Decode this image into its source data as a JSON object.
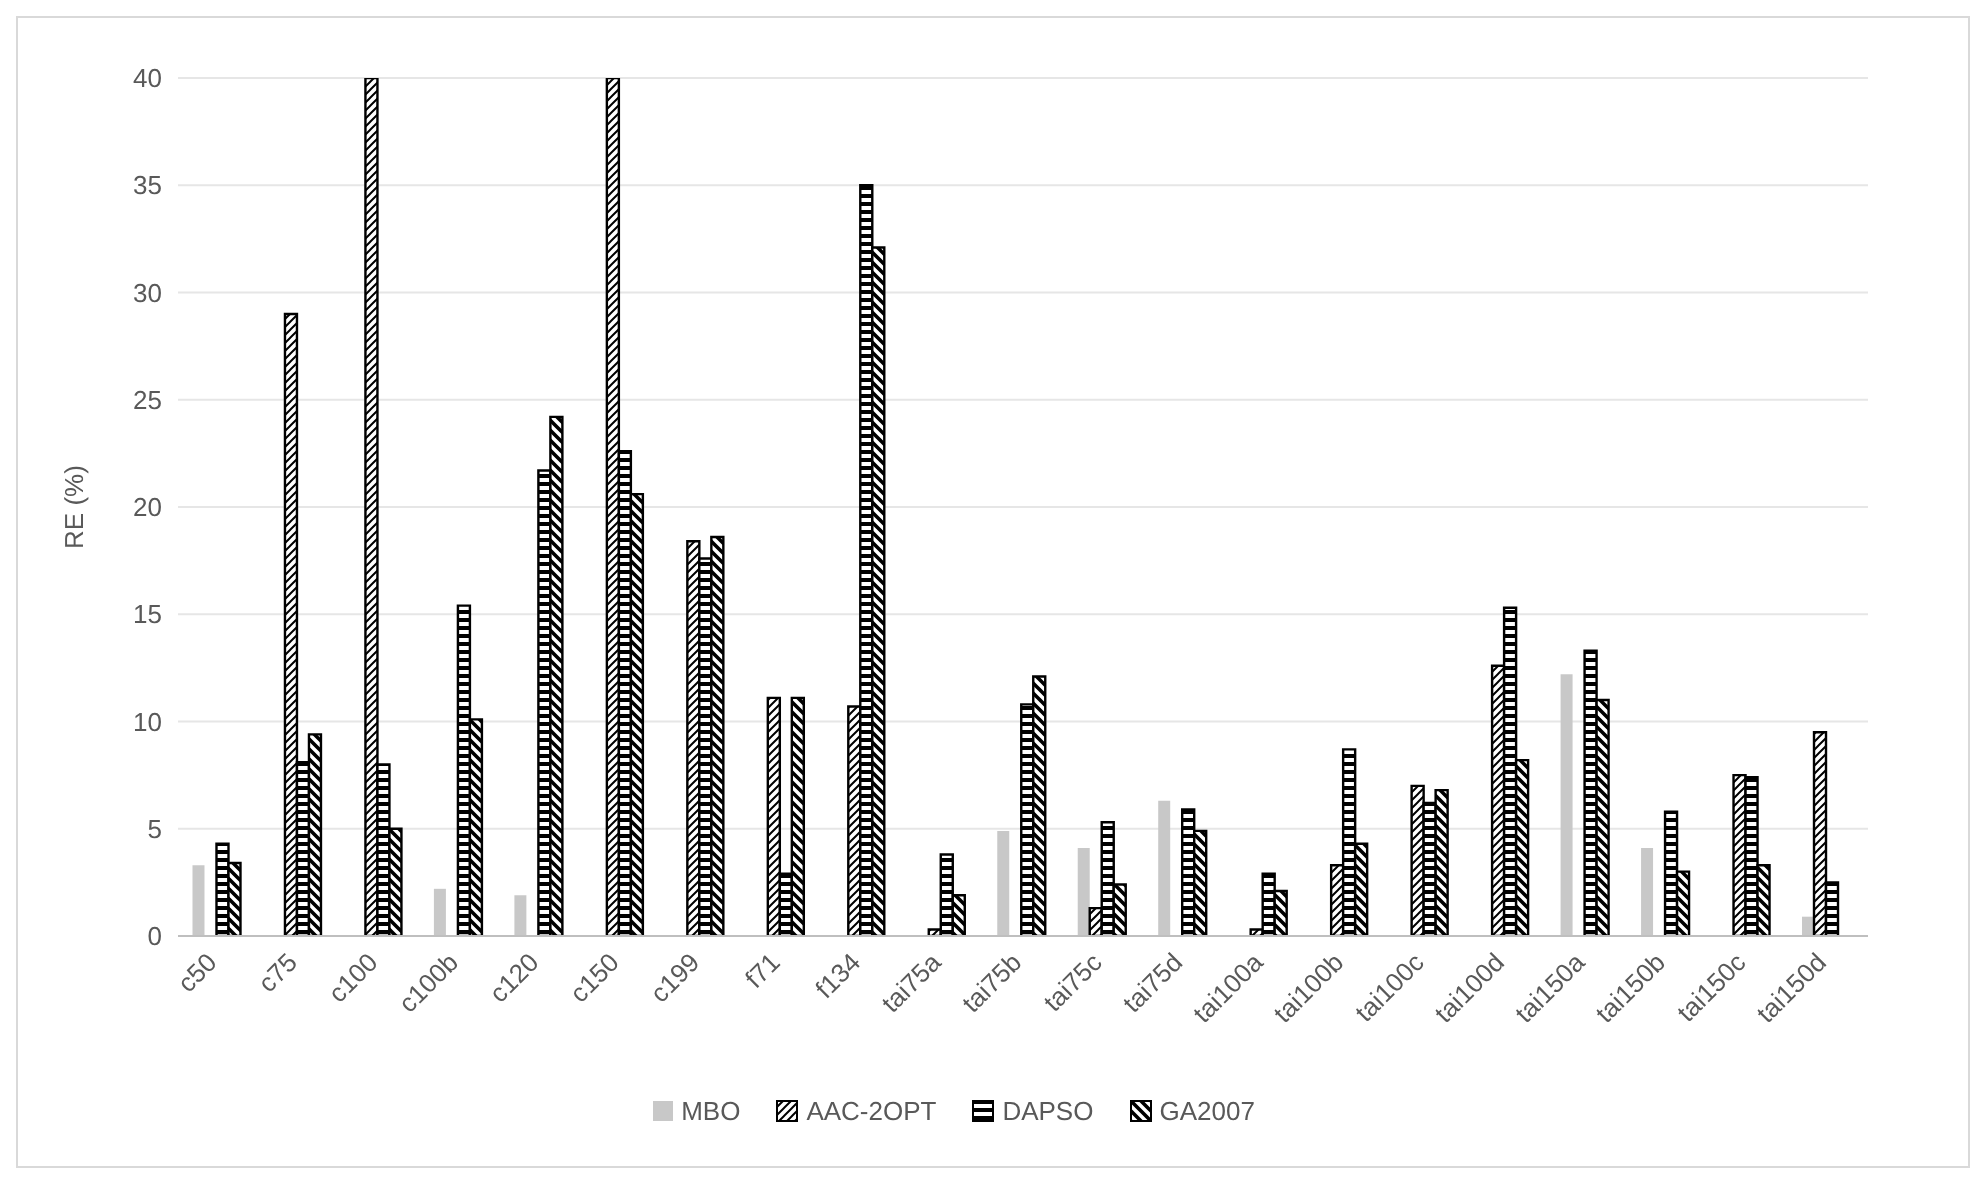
{
  "chart_data": {
    "type": "bar",
    "ylabel": "RE (%)",
    "categories": [
      "c50",
      "c75",
      "c100",
      "c100b",
      "c120",
      "c150",
      "c199",
      "f71",
      "f134",
      "tai75a",
      "tai75b",
      "tai75c",
      "tai75d",
      "tai100a",
      "tai100b",
      "tai100c",
      "tai100d",
      "tai150a",
      "tai150b",
      "tai150c",
      "tai150d"
    ],
    "series": [
      {
        "name": "MBO",
        "color": "#c8c8c8",
        "values": [
          3.3,
          null,
          null,
          2.2,
          1.9,
          null,
          null,
          null,
          null,
          null,
          4.9,
          4.1,
          6.3,
          null,
          null,
          null,
          null,
          12.2,
          4.1,
          null,
          0.9
        ]
      },
      {
        "name": "AAC-2OPT",
        "color": "#000000",
        "values": [
          null,
          29,
          40,
          null,
          null,
          40,
          18.4,
          11.1,
          10.7,
          0.3,
          null,
          1.3,
          null,
          0.3,
          3.3,
          7.0,
          12.6,
          null,
          null,
          7.5,
          9.5
        ]
      },
      {
        "name": "DAPSO",
        "color": "#000000",
        "values": [
          4.3,
          8.1,
          8.0,
          15.4,
          21.7,
          22.6,
          17.6,
          2.9,
          35,
          3.8,
          10.8,
          5.3,
          5.9,
          2.9,
          8.7,
          6.2,
          15.3,
          13.3,
          5.8,
          7.4,
          2.5
        ]
      },
      {
        "name": "GA2007",
        "color": "#000000",
        "values": [
          3.4,
          9.4,
          5.0,
          10.1,
          24.2,
          20.6,
          18.6,
          11.1,
          32.1,
          1.9,
          12.1,
          2.4,
          4.9,
          2.1,
          4.3,
          6.8,
          8.2,
          11.0,
          3.0,
          3.3,
          null
        ]
      }
    ],
    "ylim": [
      0,
      40
    ],
    "yticks": [
      0,
      5,
      10,
      15,
      20,
      25,
      30,
      35,
      40
    ],
    "grid": "y",
    "legend": "bottom"
  }
}
